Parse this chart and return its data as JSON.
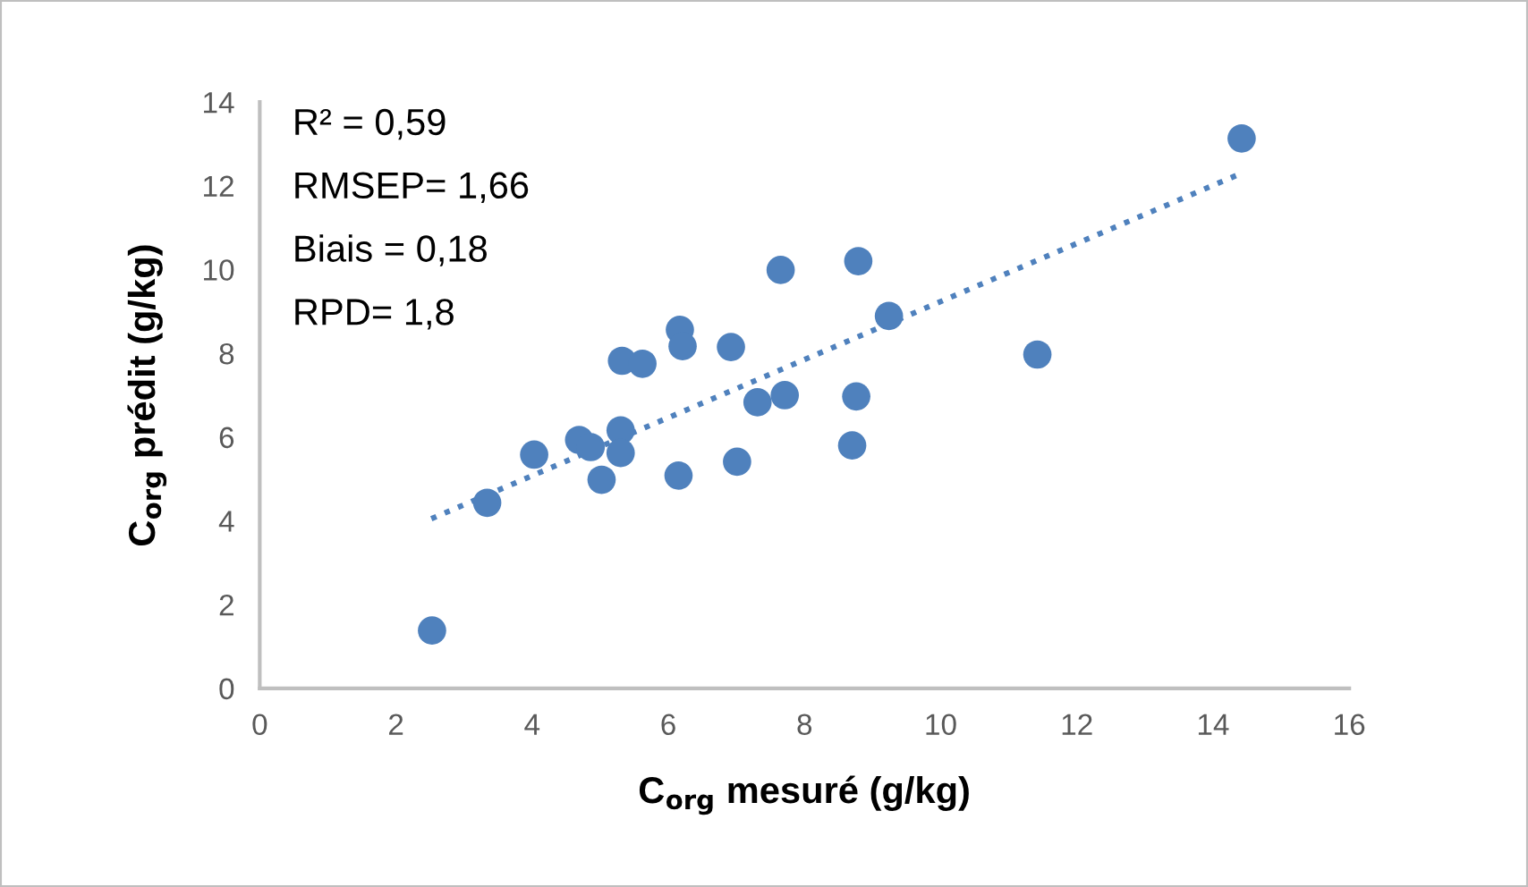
{
  "chart_data": {
    "type": "scatter",
    "xlabel": "C$_{org}$ mesuré (g/kg)",
    "ylabel": "C$_{org}$ prédit (g/kg)",
    "annotations": [
      "R² = 0,59",
      "RMSEP= 1,66",
      "Biais = 0,18",
      "RPD= 1,8"
    ],
    "series": [
      {
        "color": "#4f81bd",
        "marker": "circle",
        "x": [
          2.53,
          3.34,
          4.03,
          4.69,
          4.86,
          5.02,
          5.3,
          5.3,
          5.32,
          5.62,
          6.17,
          6.21,
          6.15,
          6.92,
          7.01,
          7.31,
          7.65,
          7.71,
          8.7,
          8.76,
          8.79,
          9.24,
          11.42,
          14.42
        ],
        "values": [
          1.38,
          4.43,
          5.58,
          5.93,
          5.76,
          4.98,
          6.16,
          5.62,
          7.82,
          7.75,
          8.56,
          8.17,
          5.08,
          8.15,
          5.41,
          6.83,
          9.99,
          7.0,
          5.8,
          6.97,
          10.2,
          8.89,
          7.97,
          13.13
        ]
      },
      {
        "type": "line",
        "color": "#4f81bd",
        "line_style": "dotted",
        "marker": "none",
        "x": [
          2.52,
          14.42
        ],
        "values": [
          4.05,
          12.3
        ]
      }
    ],
    "xlim": [
      0,
      16
    ],
    "ylim": [
      0,
      14
    ],
    "xticks": [
      0,
      2,
      4,
      6,
      8,
      10,
      12,
      14,
      16
    ],
    "yticks": [
      0,
      2,
      4,
      6,
      8,
      10,
      12,
      14
    ],
    "grid": false,
    "legend": false
  }
}
